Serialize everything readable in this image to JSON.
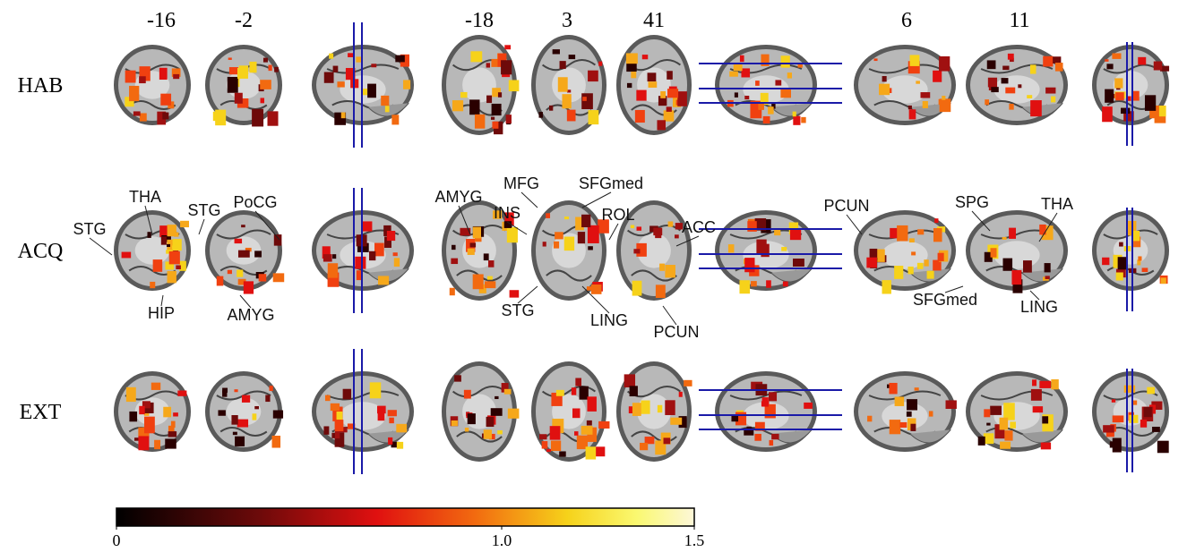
{
  "slice_labels": [
    "-16",
    "-2",
    "-18",
    "3",
    "41",
    "6",
    "11"
  ],
  "rows": [
    "HAB",
    "ACQ",
    "EXT"
  ],
  "annotations": [
    "STG",
    "THA",
    "STG",
    "PoCG",
    "HIP",
    "AMYG",
    "AMYG",
    "MFG",
    "SFGmed",
    "INS",
    "ROL",
    "STG",
    "LING",
    "ACC",
    "PCUN",
    "PCUN",
    "SPG",
    "THA",
    "SFGmed",
    "LING"
  ],
  "colorbar": {
    "range": [
      0,
      1.5
    ],
    "ticks": [
      0,
      {
        "value": 1,
        "label": "1.0"
      },
      {
        "value": 1.5,
        "label": "1.5"
      }
    ]
  }
}
